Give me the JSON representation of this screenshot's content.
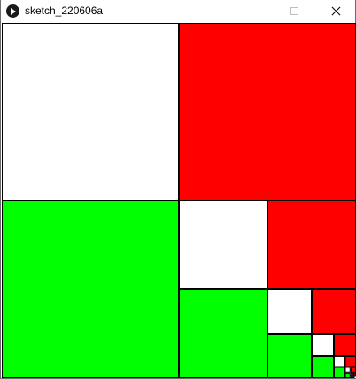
{
  "window": {
    "title": "sketch_220606a",
    "icon": "play-icon"
  },
  "controls": {
    "minimize": "minimize-icon",
    "maximize": "maximize-icon",
    "close": "close-icon"
  },
  "sketch": {
    "colors": {
      "white": "#ffffff",
      "red": "#ff0000",
      "green": "#00ff00",
      "stroke": "#000000"
    },
    "pattern": [
      "white",
      "red",
      "green"
    ],
    "levels": 9
  }
}
